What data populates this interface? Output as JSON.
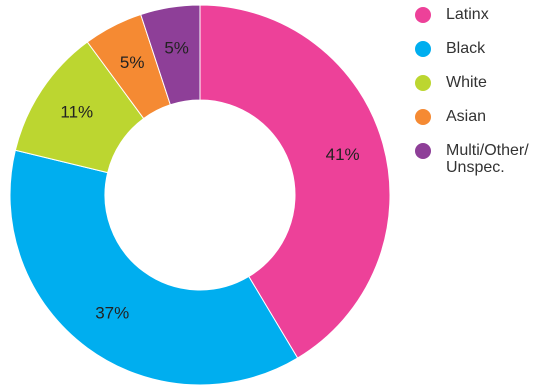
{
  "chart_data": {
    "type": "pie",
    "donut": true,
    "title": "",
    "legend_position": "right",
    "slices": [
      {
        "label": "Latinx",
        "value": 41,
        "display": "41%",
        "color": "#ED4199"
      },
      {
        "label": "Black",
        "value": 37,
        "display": "37%",
        "color": "#00AEEF"
      },
      {
        "label": "White",
        "value": 11,
        "display": "11%",
        "color": "#BCD630"
      },
      {
        "label": "Asian",
        "value": 5,
        "display": "5%",
        "color": "#F58A33"
      },
      {
        "label": "Multi/Other/ Unspec.",
        "value": 5,
        "display": "5%",
        "color": "#8E3F98"
      }
    ]
  }
}
